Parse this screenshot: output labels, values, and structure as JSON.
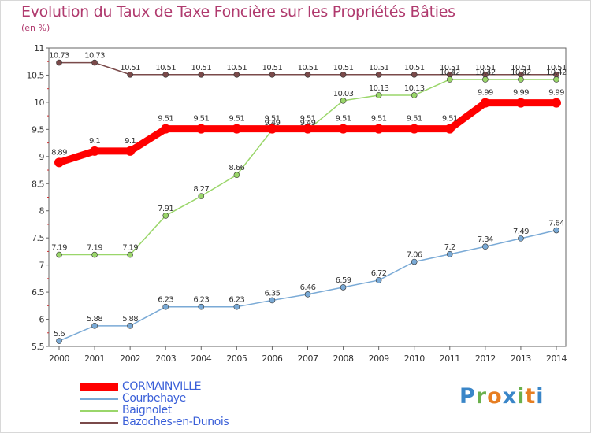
{
  "header": {
    "title": "Evolution du Taux de Taxe Foncière sur les Propriétés Bâties",
    "unit": "(en %)"
  },
  "logo": {
    "letters": [
      "P",
      "r",
      "o",
      "x",
      "i",
      "t",
      "i"
    ],
    "colors": [
      "#3a86c8",
      "#6ab04c",
      "#e67e22",
      "#3a86c8",
      "#6ab04c",
      "#e67e22",
      "#3a86c8"
    ]
  },
  "colors": {
    "CORMAINVILLE": "#ff0000",
    "Courbehaye": "#7aaad6",
    "Baignolet": "#9ad66a",
    "Bazoches-en-Dunois": "#7a4a4a"
  },
  "chart_data": {
    "type": "line",
    "title": "Evolution du Taux de Taxe Foncière sur les Propriétés Bâties",
    "ylabel": "(en %)",
    "xlabel": "",
    "ylim": [
      5.5,
      11
    ],
    "yticks": [
      "5.5",
      "6",
      "6.5",
      "7",
      "7.5",
      "8",
      "8.5",
      "9",
      "9.5",
      "10",
      "10.5",
      "11"
    ],
    "yticks_values": [
      5.5,
      6,
      6.5,
      7,
      7.5,
      8,
      8.5,
      9,
      9.5,
      10,
      10.5,
      11
    ],
    "x": [
      "2000",
      "2001",
      "2002",
      "2003",
      "2004",
      "2005",
      "2006",
      "2007",
      "2008",
      "2009",
      "2010",
      "2011",
      "2012",
      "2013",
      "2014"
    ],
    "grid": false,
    "legend": "bottom-left",
    "series": [
      {
        "name": "CORMAINVILLE",
        "color": "#ff0000",
        "values": [
          8.89,
          9.1,
          9.1,
          9.51,
          9.51,
          9.51,
          9.51,
          9.51,
          9.51,
          9.51,
          9.51,
          9.51,
          9.99,
          9.99,
          9.99
        ],
        "labels": [
          "8.89",
          "9.1",
          "9.1",
          "9.51",
          "9.51",
          "9.51",
          "9.51",
          "9.51",
          "9.51",
          "9.51",
          "9.51",
          "9.51",
          "9.99",
          "9.99",
          "9.99"
        ]
      },
      {
        "name": "Courbehaye",
        "color": "#7aaad6",
        "values": [
          5.6,
          5.88,
          5.88,
          6.23,
          6.23,
          6.23,
          6.35,
          6.46,
          6.59,
          6.72,
          7.06,
          7.2,
          7.34,
          7.49,
          7.64
        ],
        "labels": [
          "5.6",
          "5.88",
          "5.88",
          "6.23",
          "6.23",
          "6.23",
          "6.35",
          "6.46",
          "6.59",
          "6.72",
          "7.06",
          "7.2",
          "7.34",
          "7.49",
          "7.64"
        ]
      },
      {
        "name": "Baignolet",
        "color": "#9ad66a",
        "values": [
          7.19,
          7.19,
          7.19,
          7.91,
          8.27,
          8.66,
          9.49,
          9.49,
          10.03,
          10.13,
          10.13,
          10.42,
          10.42,
          10.42,
          10.42
        ],
        "labels": [
          "7.19",
          "7.19",
          "7.19",
          "7.91",
          "8.27",
          "8.66",
          "9.49",
          "9.49",
          "10.03",
          "10.13",
          "10.13",
          "10.42",
          "10.42",
          "10.42",
          "10.42"
        ]
      },
      {
        "name": "Bazoches-en-Dunois",
        "color": "#7a4a4a",
        "values": [
          10.73,
          10.73,
          10.51,
          10.51,
          10.51,
          10.51,
          10.51,
          10.51,
          10.51,
          10.51,
          10.51,
          10.51,
          10.51,
          10.51,
          10.51
        ],
        "labels": [
          "10.73",
          "10.73",
          "10.51",
          "10.51",
          "10.51",
          "10.51",
          "10.51",
          "10.51",
          "10.51",
          "10.51",
          "10.51",
          "10.51",
          "10.51",
          "10.51",
          "10.51"
        ]
      }
    ]
  }
}
